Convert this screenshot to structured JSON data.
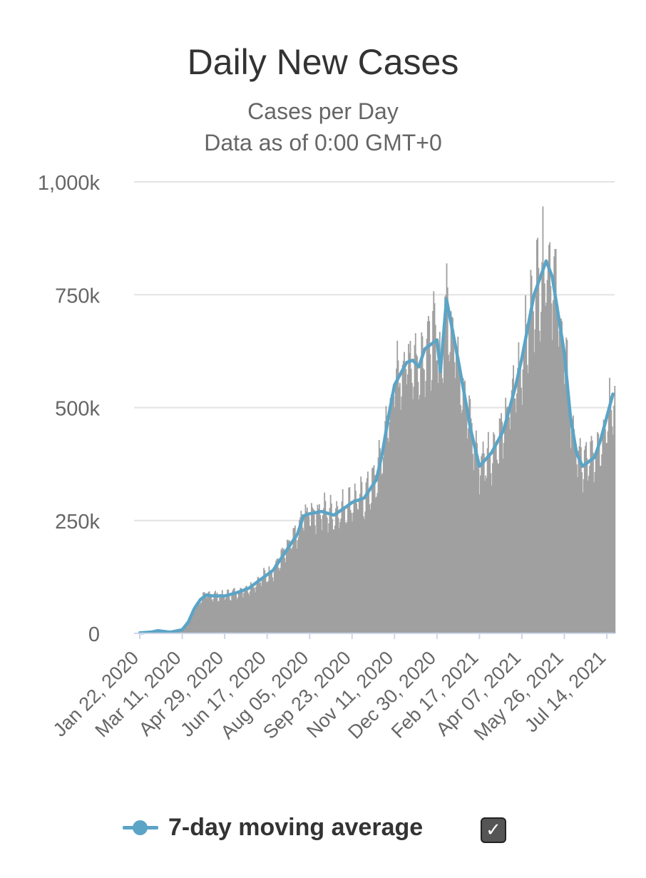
{
  "chart_data": {
    "type": "bar",
    "title": "Daily New Cases",
    "subtitle": [
      "Cases per Day",
      "Data as of 0:00 GMT+0"
    ],
    "ylim": [
      0,
      1000000
    ],
    "y_ticks": [
      0,
      250000,
      500000,
      750000,
      1000000
    ],
    "y_tick_labels": [
      "0",
      "250k",
      "500k",
      "750k",
      "1,000k"
    ],
    "x_tick_labels": [
      "Jan 22, 2020",
      "Mar 11, 2020",
      "Apr 29, 2020",
      "Jun 17, 2020",
      "Aug 05, 2020",
      "Sep 23, 2020",
      "Nov 11, 2020",
      "Dec 30, 2020",
      "Feb 17, 2021",
      "Apr 07, 2021",
      "May 26, 2021",
      "Jul 14, 2021"
    ],
    "grid": true,
    "legend_position": "bottom",
    "bar_color": "#a0a0a0",
    "line_color": "#5ba4c6",
    "series": [
      {
        "name": "7-day moving average",
        "type": "line",
        "points": [
          [
            "Jan 22, 2020",
            1000
          ],
          [
            "Feb 05, 2020",
            3000
          ],
          [
            "Feb 12, 2020",
            6000
          ],
          [
            "Feb 26, 2020",
            2500
          ],
          [
            "Mar 11, 2020",
            8000
          ],
          [
            "Mar 18, 2020",
            25000
          ],
          [
            "Mar 25, 2020",
            55000
          ],
          [
            "Apr 01, 2020",
            75000
          ],
          [
            "Apr 08, 2020",
            85000
          ],
          [
            "Apr 15, 2020",
            83000
          ],
          [
            "Apr 29, 2020",
            83000
          ],
          [
            "May 13, 2020",
            90000
          ],
          [
            "May 27, 2020",
            100000
          ],
          [
            "Jun 10, 2020",
            120000
          ],
          [
            "Jun 24, 2020",
            140000
          ],
          [
            "Jul 08, 2020",
            180000
          ],
          [
            "Jul 22, 2020",
            220000
          ],
          [
            "Jul 29, 2020",
            260000
          ],
          [
            "Aug 05, 2020",
            265000
          ],
          [
            "Aug 19, 2020",
            270000
          ],
          [
            "Sep 02, 2020",
            262000
          ],
          [
            "Sep 16, 2020",
            280000
          ],
          [
            "Sep 23, 2020",
            290000
          ],
          [
            "Oct 07, 2020",
            300000
          ],
          [
            "Oct 21, 2020",
            340000
          ],
          [
            "Oct 28, 2020",
            400000
          ],
          [
            "Nov 04, 2020",
            480000
          ],
          [
            "Nov 11, 2020",
            550000
          ],
          [
            "Nov 25, 2020",
            600000
          ],
          [
            "Dec 02, 2020",
            605000
          ],
          [
            "Dec 09, 2020",
            590000
          ],
          [
            "Dec 16, 2020",
            630000
          ],
          [
            "Dec 30, 2020",
            650000
          ],
          [
            "Jan 03, 2021",
            580000
          ],
          [
            "Jan 10, 2021",
            740000
          ],
          [
            "Jan 24, 2021",
            600000
          ],
          [
            "Feb 07, 2021",
            450000
          ],
          [
            "Feb 17, 2021",
            370000
          ],
          [
            "Mar 03, 2021",
            400000
          ],
          [
            "Mar 17, 2021",
            450000
          ],
          [
            "Mar 31, 2021",
            550000
          ],
          [
            "Apr 07, 2021",
            610000
          ],
          [
            "Apr 21, 2021",
            750000
          ],
          [
            "May 05, 2021",
            825000
          ],
          [
            "May 12, 2021",
            790000
          ],
          [
            "May 26, 2021",
            620000
          ],
          [
            "Jun 02, 2021",
            480000
          ],
          [
            "Jun 09, 2021",
            400000
          ],
          [
            "Jun 16, 2021",
            370000
          ],
          [
            "Jun 30, 2021",
            390000
          ],
          [
            "Jul 07, 2021",
            430000
          ],
          [
            "Jul 21, 2021",
            530000
          ]
        ]
      }
    ]
  },
  "legend": {
    "label": "7-day moving average",
    "checkbox_symbol": "✓"
  }
}
